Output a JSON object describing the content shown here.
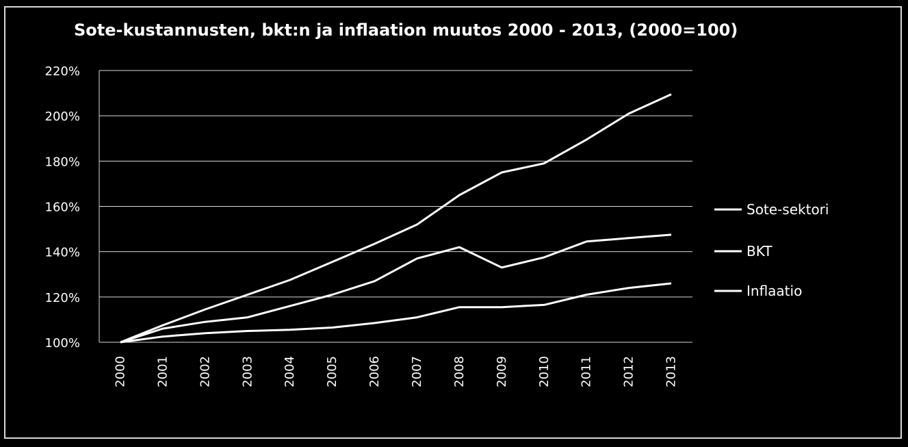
{
  "chart_data": {
    "type": "line",
    "title": "Sote-kustannusten, bkt:n ja inflaation muutos 2000 - 2013, (2000=100)",
    "xlabel": "",
    "ylabel": "",
    "x": [
      "2000",
      "2001",
      "2002",
      "2003",
      "2004",
      "2005",
      "2006",
      "2007",
      "2008",
      "2009",
      "2010",
      "2011",
      "2012",
      "2013"
    ],
    "ylim": [
      100,
      220
    ],
    "yticks": [
      "100%",
      "120%",
      "140%",
      "160%",
      "180%",
      "200%",
      "220%"
    ],
    "grid": true,
    "legend_position": "right",
    "series": [
      {
        "name": "Sote-sektori",
        "color": "#ffffff",
        "values": [
          100,
          107.5,
          114.5,
          121,
          127.5,
          135.5,
          143.5,
          152,
          165,
          175,
          179,
          189.5,
          201,
          209.5
        ]
      },
      {
        "name": "BKT",
        "color": "#ffffff",
        "values": [
          100,
          106,
          109,
          111,
          116,
          121,
          127,
          137,
          142,
          133,
          137.5,
          144.5,
          146,
          147.5
        ]
      },
      {
        "name": "Inflaatio",
        "color": "#ffffff",
        "values": [
          100,
          102.5,
          104,
          105,
          105.5,
          106.5,
          108.5,
          111,
          115.5,
          115.5,
          116.5,
          121,
          124,
          126
        ]
      }
    ]
  }
}
